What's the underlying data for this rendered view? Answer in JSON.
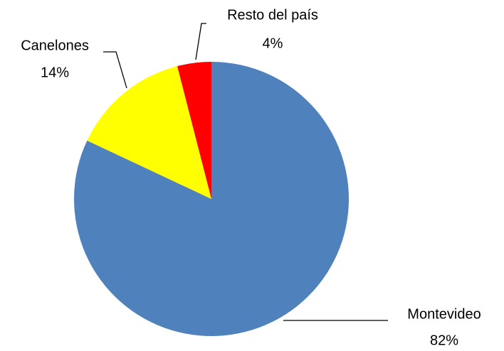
{
  "chart_data": {
    "type": "pie",
    "categories": [
      "Montevideo",
      "Canelones",
      "Resto del país"
    ],
    "values": [
      82,
      14,
      4
    ],
    "value_labels": [
      "82%",
      "14%",
      "4%"
    ],
    "colors": [
      "#4f81bd",
      "#ffff00",
      "#ff0000"
    ]
  }
}
